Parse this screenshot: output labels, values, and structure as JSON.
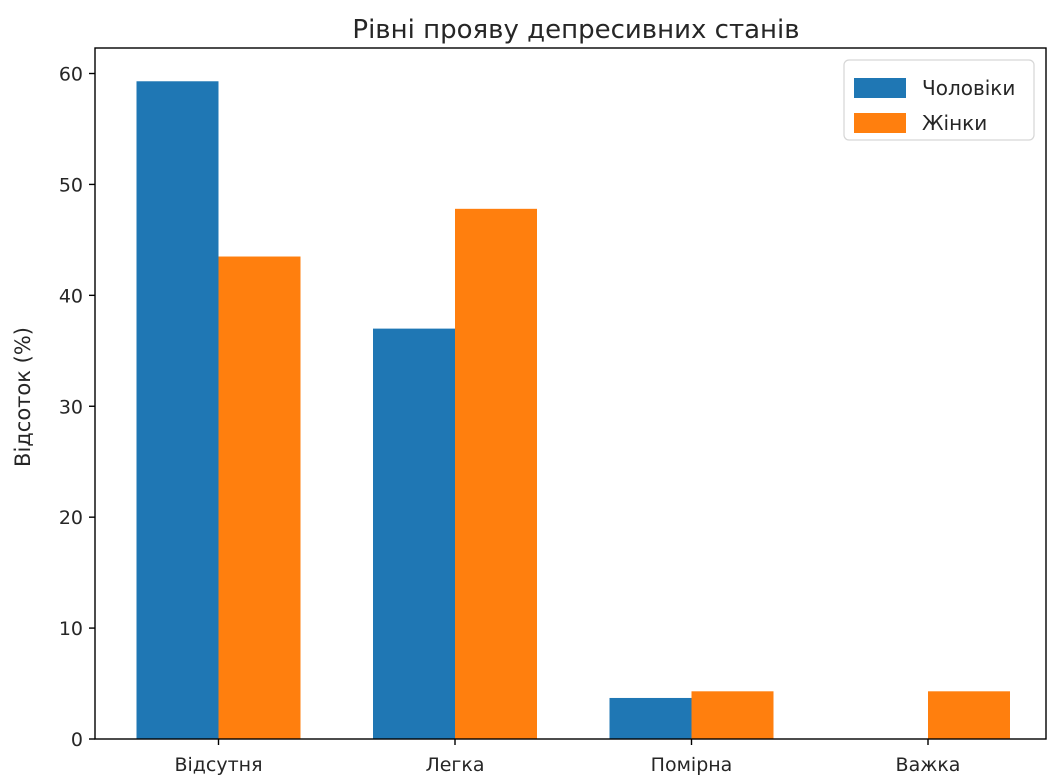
{
  "chart_data": {
    "type": "bar",
    "title": "Рівні прояву депресивних станів",
    "xlabel": "",
    "ylabel": "Відсоток (%)",
    "categories": [
      "Відсутня",
      "Легка",
      "Помірна",
      "Важка"
    ],
    "series": [
      {
        "name": "Чоловіки",
        "color": "#1f77b4",
        "values": [
          59.3,
          37.0,
          3.7,
          0.0
        ]
      },
      {
        "name": "Жінки",
        "color": "#ff7f0e",
        "values": [
          43.5,
          47.8,
          4.3,
          4.3
        ]
      }
    ],
    "ylim": [
      0,
      62.3
    ],
    "yticks": [
      "0",
      "10",
      "20",
      "30",
      "40",
      "50",
      "60"
    ],
    "grid": false,
    "legend_position": "top-right"
  }
}
